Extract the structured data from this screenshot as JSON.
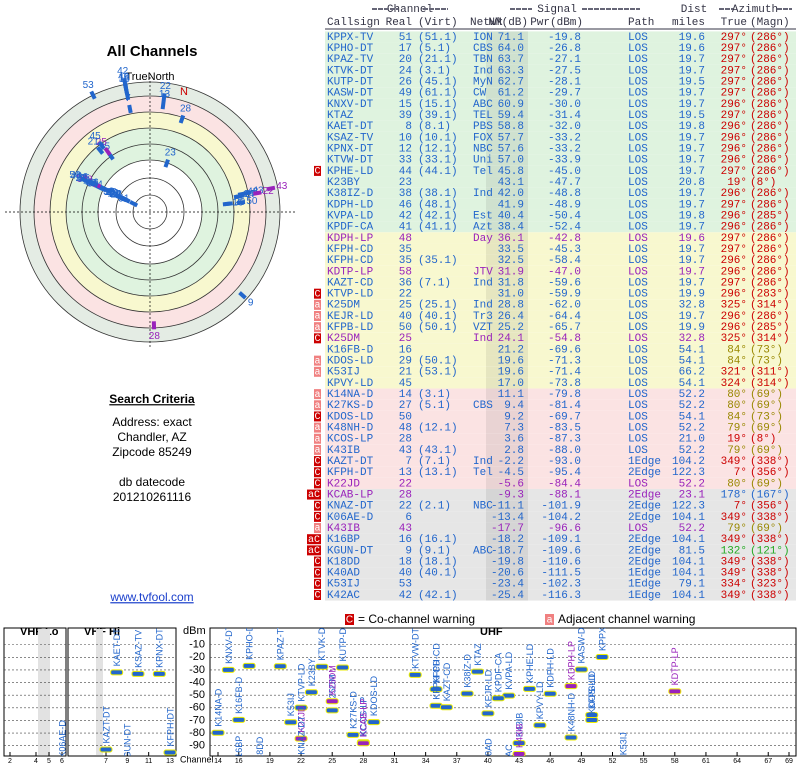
{
  "left": {
    "title": "All Channels",
    "north_label": "TrueNorth",
    "north_mark": "N",
    "criteria_title": "Search Criteria",
    "criteria": [
      "Address: exact",
      "Chandler, AZ",
      "Zipcode 85249"
    ],
    "datecode_label": "db datecode",
    "datecode": "201210261116",
    "link": "www.tvfool.com"
  },
  "table": {
    "groups": [
      "Channel",
      "Signal",
      "Dist",
      "Azimuth"
    ],
    "headers": [
      "Callsign",
      "Real",
      "(Virt)",
      "Netwk",
      "NM(dB)",
      "Pwr(dBm)",
      "Path",
      "miles",
      "True",
      "(Magn)"
    ],
    "rows": [
      [
        null,
        "KPPX-TV",
        "51",
        "(51.1)",
        "ION",
        "71.1",
        "-19.8",
        "LOS",
        "19.6",
        "297°",
        "(286°)"
      ],
      [
        null,
        "KPHO-DT",
        "17",
        "(5.1)",
        "CBS",
        "64.0",
        "-26.8",
        "LOS",
        "19.6",
        "297°",
        "(286°)"
      ],
      [
        null,
        "KPAZ-TV",
        "20",
        "(21.1)",
        "TBN",
        "63.7",
        "-27.1",
        "LOS",
        "19.7",
        "297°",
        "(286°)"
      ],
      [
        null,
        "KTVK-DT",
        "24",
        "(3.1)",
        "Ind",
        "63.3",
        "-27.5",
        "LOS",
        "19.7",
        "297°",
        "(286°)"
      ],
      [
        null,
        "KUTP-DT",
        "26",
        "(45.1)",
        "MyN",
        "62.7",
        "-28.1",
        "LOS",
        "19.5",
        "297°",
        "(286°)"
      ],
      [
        null,
        "KASW-DT",
        "49",
        "(61.1)",
        "CW",
        "61.2",
        "-29.7",
        "LOS",
        "19.7",
        "297°",
        "(286°)"
      ],
      [
        null,
        "KNXV-DT",
        "15",
        "(15.1)",
        "ABC",
        "60.9",
        "-30.0",
        "LOS",
        "19.7",
        "296°",
        "(286°)"
      ],
      [
        null,
        "KTAZ",
        "39",
        "(39.1)",
        "TEL",
        "59.4",
        "-31.4",
        "LOS",
        "19.5",
        "297°",
        "(286°)"
      ],
      [
        null,
        "KAET-DT",
        "8",
        "(8.1)",
        "PBS",
        "58.8",
        "-32.0",
        "LOS",
        "19.8",
        "296°",
        "(286°)"
      ],
      [
        null,
        "KSAZ-TV",
        "10",
        "(10.1)",
        "FOX",
        "57.7",
        "-33.2",
        "LOS",
        "19.7",
        "296°",
        "(286°)"
      ],
      [
        null,
        "KPNX-DT",
        "12",
        "(12.1)",
        "NBC",
        "57.6",
        "-33.2",
        "LOS",
        "19.7",
        "296°",
        "(286°)"
      ],
      [
        null,
        "KTVW-DT",
        "33",
        "(33.1)",
        "Uni",
        "57.0",
        "-33.9",
        "LOS",
        "19.7",
        "296°",
        "(286°)"
      ],
      [
        "C",
        "KPHE-LD",
        "44",
        "(44.1)",
        "Tel",
        "45.8",
        "-45.0",
        "LOS",
        "19.7",
        "297°",
        "(286°)"
      ],
      [
        null,
        "K23BY",
        "23",
        null,
        null,
        "43.1",
        "-47.7",
        "LOS",
        "20.8",
        "19°",
        "(8°)"
      ],
      [
        null,
        "K38IZ-D",
        "38",
        "(38.1)",
        "Ind",
        "42.0",
        "-48.8",
        "LOS",
        "19.7",
        "296°",
        "(286°)"
      ],
      [
        null,
        "KDPH-LD",
        "46",
        "(48.1)",
        null,
        "41.9",
        "-48.9",
        "LOS",
        "19.7",
        "297°",
        "(286°)"
      ],
      [
        null,
        "KVPA-LD",
        "42",
        "(42.1)",
        "Est",
        "40.4",
        "-50.4",
        "LOS",
        "19.8",
        "296°",
        "(285°)"
      ],
      [
        null,
        "KPDF-CA",
        "41",
        "(41.1)",
        "Azt",
        "38.4",
        "-52.4",
        "LOS",
        "19.7",
        "296°",
        "(286°)"
      ],
      [
        null,
        "KDPH-LP",
        "48",
        null,
        "Day",
        "36.1",
        "-42.8",
        "LOS",
        "19.6",
        "297°",
        "(286°)"
      ],
      [
        null,
        "KFPH-CD",
        "35",
        null,
        null,
        "33.5",
        "-45.3",
        "LOS",
        "19.7",
        "297°",
        "(286°)"
      ],
      [
        null,
        "KFPH-CD",
        "35",
        "(35.1)",
        null,
        "32.5",
        "-58.4",
        "LOS",
        "19.7",
        "296°",
        "(286°)"
      ],
      [
        null,
        "KDTP-LP",
        "58",
        null,
        "JTV",
        "31.9",
        "-47.0",
        "LOS",
        "19.7",
        "296°",
        "(286°)"
      ],
      [
        null,
        "KAZT-CD",
        "36",
        "(7.1)",
        "Ind",
        "31.8",
        "-59.6",
        "LOS",
        "19.7",
        "297°",
        "(286°)"
      ],
      [
        "C",
        "KTVP-LD",
        "22",
        null,
        null,
        "31.0",
        "-59.9",
        "LOS",
        "19.9",
        "296°",
        "(283°)"
      ],
      [
        "a",
        "K25DM",
        "25",
        "(25.1)",
        "Ind",
        "28.8",
        "-62.0",
        "LOS",
        "32.8",
        "325°",
        "(314°)"
      ],
      [
        "a",
        "KEJR-LD",
        "40",
        "(40.1)",
        "Tr3",
        "26.4",
        "-64.4",
        "LOS",
        "19.7",
        "296°",
        "(286°)"
      ],
      [
        "a",
        "KFPB-LD",
        "50",
        "(50.1)",
        "VZT",
        "25.2",
        "-65.7",
        "LOS",
        "19.9",
        "296°",
        "(285°)"
      ],
      [
        "C",
        "K25DM",
        "25",
        null,
        "Ind",
        "24.1",
        "-54.8",
        "LOS",
        "32.8",
        "325°",
        "(314°)"
      ],
      [
        null,
        "K16FB-D",
        "16",
        null,
        null,
        "21.2",
        "-69.6",
        "LOS",
        "54.1",
        "84°",
        "(73°)"
      ],
      [
        "a",
        "KDOS-LD",
        "29",
        "(50.1)",
        null,
        "19.6",
        "-71.3",
        "LOS",
        "54.1",
        "84°",
        "(73°)"
      ],
      [
        "a",
        "K53IJ",
        "21",
        "(53.1)",
        null,
        "19.6",
        "-71.4",
        "LOS",
        "66.2",
        "321°",
        "(311°)"
      ],
      [
        null,
        "KPVY-LD",
        "45",
        null,
        null,
        "17.0",
        "-73.8",
        "LOS",
        "54.1",
        "324°",
        "(314°)"
      ],
      [
        "a",
        "K14NA-D",
        "14",
        "(3.1)",
        null,
        "11.1",
        "-79.8",
        "LOS",
        "52.2",
        "80°",
        "(69°)"
      ],
      [
        "a",
        "K27KS-D",
        "27",
        "(5.1)",
        "CBS",
        "9.4",
        "-81.4",
        "LOS",
        "52.2",
        "80°",
        "(69°)"
      ],
      [
        "C",
        "KDOS-LD",
        "50",
        null,
        null,
        "9.2",
        "-69.7",
        "LOS",
        "54.1",
        "84°",
        "(73°)"
      ],
      [
        "a",
        "K48NH-D",
        "48",
        "(12.1)",
        null,
        "7.3",
        "-83.5",
        "LOS",
        "52.2",
        "79°",
        "(69°)"
      ],
      [
        "a",
        "KCOS-LP",
        "28",
        null,
        null,
        "3.6",
        "-87.3",
        "LOS",
        "21.0",
        "19°",
        "(8°)"
      ],
      [
        "a",
        "K43IB",
        "43",
        "(43.1)",
        null,
        "2.8",
        "-88.0",
        "LOS",
        "52.2",
        "79°",
        "(69°)"
      ],
      [
        "C",
        "KAZT-DT",
        "7",
        "(7.1)",
        "Ind",
        "-2.2",
        "-93.0",
        "1Edge",
        "104.2",
        "349°",
        "(338°)"
      ],
      [
        "C",
        "KFPH-DT",
        "13",
        "(13.1)",
        "Tel",
        "-4.5",
        "-95.4",
        "2Edge",
        "122.3",
        "7°",
        "(356°)"
      ],
      [
        "C",
        "K22JD",
        "22",
        null,
        null,
        "-5.6",
        "-84.4",
        "LOS",
        "52.2",
        "80°",
        "(69°)"
      ],
      [
        "aC",
        "KCAB-LP",
        "28",
        null,
        null,
        "-9.3",
        "-88.1",
        "2Edge",
        "23.1",
        "178°",
        "(167°)"
      ],
      [
        "C",
        "KNAZ-DT",
        "22",
        "(2.1)",
        "NBC",
        "-11.1",
        "-101.9",
        "2Edge",
        "122.3",
        "7°",
        "(356°)"
      ],
      [
        "C",
        "K06AE-D",
        "6",
        null,
        null,
        "-13.4",
        "-104.2",
        "2Edge",
        "104.1",
        "349°",
        "(338°)"
      ],
      [
        "a",
        "K43IB",
        "43",
        null,
        null,
        "-17.7",
        "-96.6",
        "LOS",
        "52.2",
        "79°",
        "(69°)"
      ],
      [
        "aC",
        "K16BP",
        "16",
        "(16.1)",
        null,
        "-18.2",
        "-109.1",
        "2Edge",
        "104.1",
        "349°",
        "(338°)"
      ],
      [
        "aC",
        "KGUN-DT",
        "9",
        "(9.1)",
        "ABC",
        "-18.7",
        "-109.6",
        "2Edge",
        "81.5",
        "132°",
        "(121°)"
      ],
      [
        "C",
        "K18DD",
        "18",
        "(18.1)",
        null,
        "-19.8",
        "-110.6",
        "2Edge",
        "104.1",
        "349°",
        "(338°)"
      ],
      [
        "C",
        "K40AD",
        "40",
        "(40.1)",
        null,
        "-20.6",
        "-111.5",
        "1Edge",
        "104.1",
        "349°",
        "(338°)"
      ],
      [
        "C",
        "K53IJ",
        "53",
        null,
        null,
        "-23.4",
        "-102.3",
        "1Edge",
        "79.1",
        "334°",
        "(323°)"
      ],
      [
        "C",
        "K42AC",
        "42",
        "(42.1)",
        null,
        "-25.4",
        "-116.3",
        "1Edge",
        "104.1",
        "349°",
        "(338°)"
      ]
    ],
    "row_styles": [
      [
        "#dff3df",
        "#2266cc",
        "#cc0000"
      ],
      [
        "#dff3df",
        "#2266cc",
        "#cc0000"
      ],
      [
        "#dff3df",
        "#2266cc",
        "#cc0000"
      ],
      [
        "#dff3df",
        "#2266cc",
        "#cc0000"
      ],
      [
        "#dff3df",
        "#2266cc",
        "#cc0000"
      ],
      [
        "#dff3df",
        "#2266cc",
        "#cc0000"
      ],
      [
        "#dff3df",
        "#2266cc",
        "#cc0000"
      ],
      [
        "#dff3df",
        "#2266cc",
        "#cc0000"
      ],
      [
        "#dff3df",
        "#2266cc",
        "#cc0000"
      ],
      [
        "#dff3df",
        "#2266cc",
        "#cc0000"
      ],
      [
        "#dff3df",
        "#2266cc",
        "#cc0000"
      ],
      [
        "#dff3df",
        "#2266cc",
        "#cc0000"
      ],
      [
        "#dff3df",
        "#2266cc",
        "#cc0000"
      ],
      [
        "#dff3df",
        "#2266cc",
        "#cc0000"
      ],
      [
        "#dff3df",
        "#2266cc",
        "#cc0000"
      ],
      [
        "#dff3df",
        "#2266cc",
        "#cc0000"
      ],
      [
        "#dff3df",
        "#2266cc",
        "#cc0000"
      ],
      [
        "#dff3df",
        "#2266cc",
        "#cc0000"
      ],
      [
        "#f8f8cf",
        "#9922bb",
        "#cc0000"
      ],
      [
        "#f8f8cf",
        "#2266cc",
        "#cc0000"
      ],
      [
        "#f8f8cf",
        "#2266cc",
        "#cc0000"
      ],
      [
        "#f8f8cf",
        "#9922bb",
        "#cc0000"
      ],
      [
        "#f8f8cf",
        "#2266cc",
        "#cc0000"
      ],
      [
        "#f8f8cf",
        "#2266cc",
        "#cc0000"
      ],
      [
        "#f8f8cf",
        "#2266cc",
        "#cc0000"
      ],
      [
        "#f8f8cf",
        "#2266cc",
        "#cc0000"
      ],
      [
        "#f8f8cf",
        "#2266cc",
        "#cc0000"
      ],
      [
        "#f8f8cf",
        "#9922bb",
        "#cc0000"
      ],
      [
        "#f8f8cf",
        "#2266cc",
        "#998800"
      ],
      [
        "#f8f8cf",
        "#2266cc",
        "#998800"
      ],
      [
        "#f8f8cf",
        "#2266cc",
        "#cc0000"
      ],
      [
        "#f8f8cf",
        "#2266cc",
        "#cc0000"
      ],
      [
        "#fbe3e3",
        "#2266cc",
        "#998800"
      ],
      [
        "#fbe3e3",
        "#2266cc",
        "#998800"
      ],
      [
        "#fbe3e3",
        "#2266cc",
        "#998800"
      ],
      [
        "#fbe3e3",
        "#2266cc",
        "#998800"
      ],
      [
        "#fbe3e3",
        "#2266cc",
        "#cc0000"
      ],
      [
        "#fbe3e3",
        "#2266cc",
        "#998800"
      ],
      [
        "#fbe3e3",
        "#2266cc",
        "#cc0000"
      ],
      [
        "#fbe3e3",
        "#2266cc",
        "#cc0000"
      ],
      [
        "#fbe3e3",
        "#9922bb",
        "#998800"
      ],
      [
        "#e6e6e6",
        "#9922bb",
        "#2266cc"
      ],
      [
        "#e6e6e6",
        "#2266cc",
        "#cc0000"
      ],
      [
        "#e6e6e6",
        "#2266cc",
        "#cc0000"
      ],
      [
        "#e6e6e6",
        "#9922bb",
        "#998800"
      ],
      [
        "#e6e6e6",
        "#2266cc",
        "#cc0000"
      ],
      [
        "#e6e6e6",
        "#2266cc",
        "#22aa22"
      ],
      [
        "#e6e6e6",
        "#2266cc",
        "#cc0000"
      ],
      [
        "#e6e6e6",
        "#2266cc",
        "#cc0000"
      ],
      [
        "#e6e6e6",
        "#2266cc",
        "#cc0000"
      ],
      [
        "#e6e6e6",
        "#2266cc",
        "#cc0000"
      ]
    ]
  },
  "spectrum": {
    "y_label": "dBm",
    "x_label": "Channel",
    "bands": [
      {
        "name": "VHF Lo",
        "range": [
          2,
          6
        ]
      },
      {
        "name": "VHF Hi",
        "range": [
          7,
          13
        ]
      },
      {
        "name": "UHF",
        "range": [
          14,
          69
        ]
      }
    ],
    "ylim": [
      0,
      -95
    ],
    "yticks": [
      -10,
      -20,
      -30,
      -40,
      -50,
      -60,
      -70,
      -80,
      -90
    ],
    "xticks": [
      2,
      4,
      5,
      6,
      7,
      9,
      11,
      13,
      14,
      16,
      19,
      22,
      25,
      28,
      31,
      34,
      37,
      40,
      43,
      46,
      49,
      52,
      55,
      58,
      61,
      64,
      67,
      69
    ],
    "legend": [
      {
        "flag": "C",
        "text": "= Co-channel warning",
        "color": "#cc0000"
      },
      {
        "flag": "a",
        "text": "Adjacent channel warning",
        "color": "#f08080"
      }
    ]
  }
}
